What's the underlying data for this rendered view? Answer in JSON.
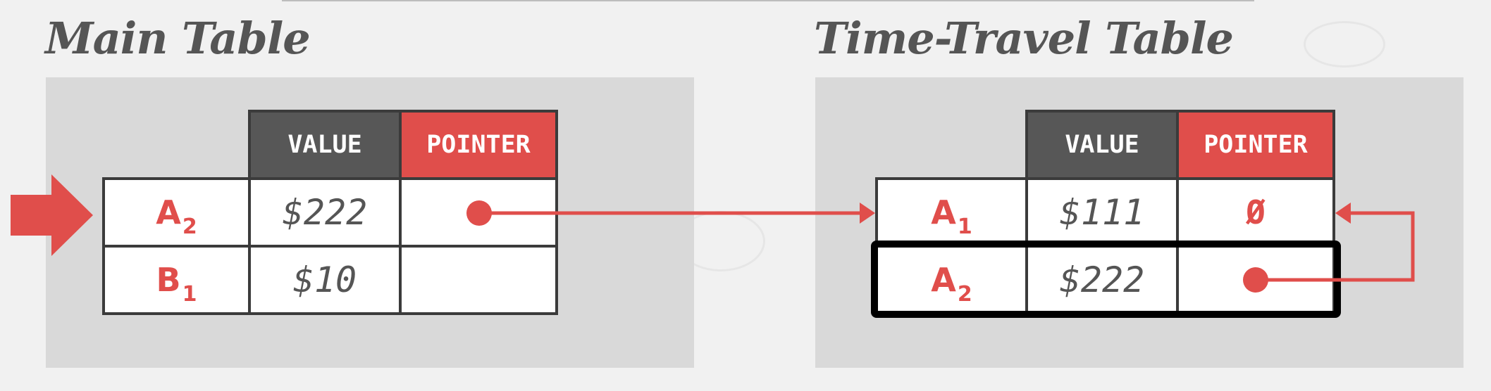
{
  "main_table": {
    "title": "Main Table",
    "headers": {
      "value": "VALUE",
      "pointer": "POINTER"
    },
    "rows": [
      {
        "key": "A",
        "version": "2",
        "value": "$222",
        "pointer": ""
      },
      {
        "key": "B",
        "version": "1",
        "value": "$10",
        "pointer": ""
      }
    ]
  },
  "time_travel_table": {
    "title": "Time-Travel Table",
    "headers": {
      "value": "VALUE",
      "pointer": "POINTER"
    },
    "rows": [
      {
        "key": "A",
        "version": "1",
        "value": "$111",
        "pointer": "Ø"
      },
      {
        "key": "A",
        "version": "2",
        "value": "$222",
        "pointer": ""
      }
    ]
  },
  "colors": {
    "accent": "#e04e4b",
    "header_dark": "#575757",
    "panel": "#d9d9d9",
    "text_gray": "#555555"
  }
}
